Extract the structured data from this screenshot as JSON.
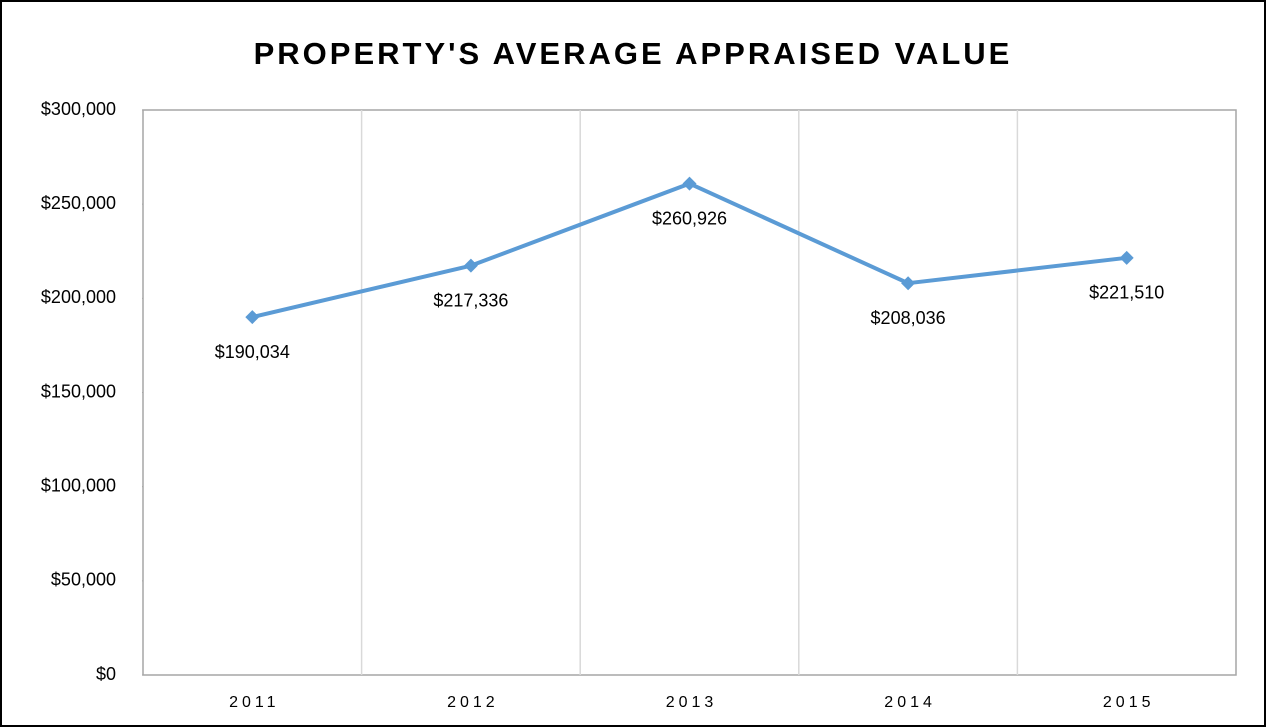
{
  "chart_data": {
    "type": "line",
    "title": "PROPERTY'S AVERAGE APPRAISED VALUE",
    "categories": [
      "2011",
      "2012",
      "2013",
      "2014",
      "2015"
    ],
    "series": [
      {
        "color": "#5b9bd5",
        "values": [
          190034,
          217336,
          260926,
          208036,
          221510
        ],
        "value_labels": [
          "$190,034",
          "$217,336",
          "$260,926",
          "$208,036",
          "$221,510"
        ]
      }
    ],
    "ylim": [
      0,
      300000
    ],
    "yticks": [
      {
        "value": 0,
        "label": "$0"
      },
      {
        "value": 50000,
        "label": "$50,000"
      },
      {
        "value": 100000,
        "label": "$100,000"
      },
      {
        "value": 150000,
        "label": "$150,000"
      },
      {
        "value": 200000,
        "label": "$200,000"
      },
      {
        "value": 250000,
        "label": "$250,000"
      },
      {
        "value": 300000,
        "label": "$300,000"
      }
    ],
    "grid": true
  }
}
